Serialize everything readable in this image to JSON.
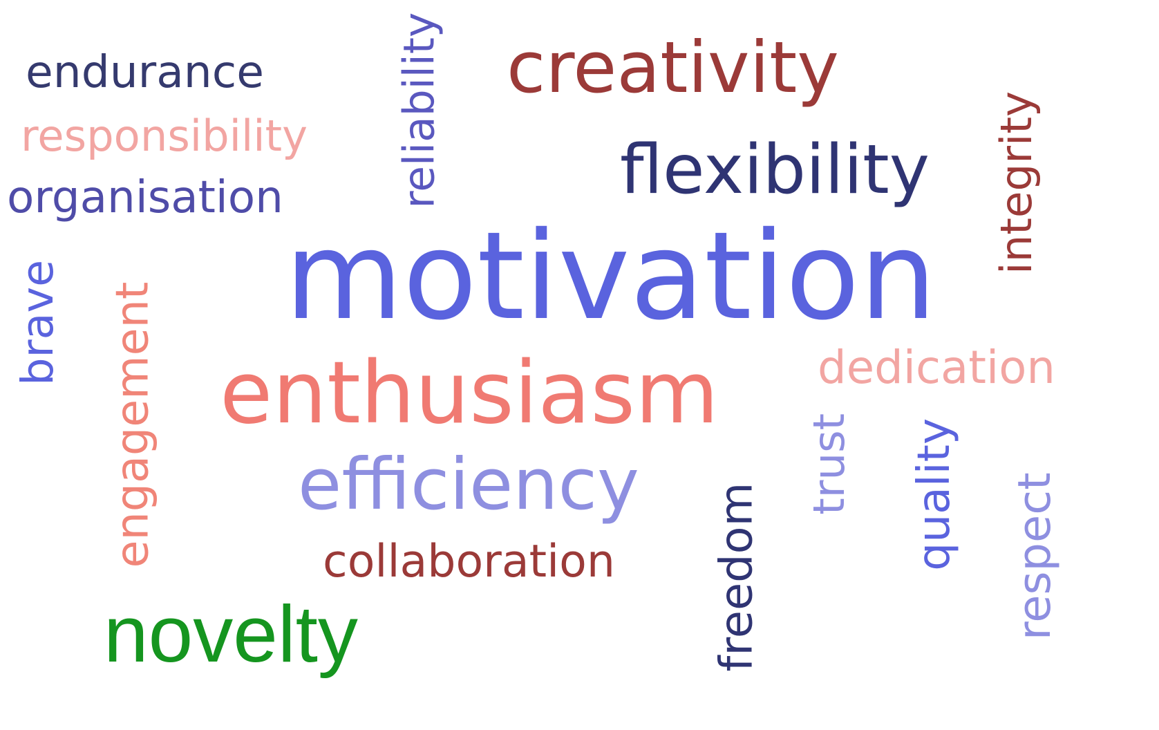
{
  "words": [
    {
      "id": "endurance",
      "text": "endurance",
      "color": "#353a6e",
      "orientation": "horizontal"
    },
    {
      "id": "responsibility",
      "text": "responsibility",
      "color": "#f2a5a2",
      "orientation": "horizontal"
    },
    {
      "id": "organisation",
      "text": "organisation",
      "color": "#4f4ca8",
      "orientation": "horizontal"
    },
    {
      "id": "reliability",
      "text": "reliability",
      "color": "#5a58bf",
      "orientation": "vertical"
    },
    {
      "id": "creativity",
      "text": "creativity",
      "color": "#9b3a38",
      "orientation": "horizontal"
    },
    {
      "id": "flexibility",
      "text": "flexibility",
      "color": "#2f3473",
      "orientation": "horizontal"
    },
    {
      "id": "integrity",
      "text": "integrity",
      "color": "#9b3a38",
      "orientation": "vertical"
    },
    {
      "id": "motivation",
      "text": "motivation",
      "color": "#5a63de",
      "orientation": "horizontal"
    },
    {
      "id": "brave",
      "text": "brave",
      "color": "#5a63de",
      "orientation": "vertical"
    },
    {
      "id": "engagement",
      "text": "engagement",
      "color": "#f08578",
      "orientation": "vertical"
    },
    {
      "id": "enthusiasm",
      "text": "enthusiasm",
      "color": "#f07a72",
      "orientation": "horizontal"
    },
    {
      "id": "dedication",
      "text": "dedication",
      "color": "#f2a5a2",
      "orientation": "horizontal"
    },
    {
      "id": "efficiency",
      "text": "efficiency",
      "color": "#8e8fe0",
      "orientation": "horizontal"
    },
    {
      "id": "trust",
      "text": "trust",
      "color": "#8e8fe0",
      "orientation": "vertical"
    },
    {
      "id": "quality",
      "text": "quality",
      "color": "#5a63de",
      "orientation": "vertical"
    },
    {
      "id": "respect",
      "text": "respect",
      "color": "#8e8fe0",
      "orientation": "vertical"
    },
    {
      "id": "collaboration",
      "text": "collaboration",
      "color": "#9b3a38",
      "orientation": "horizontal"
    },
    {
      "id": "freedom",
      "text": "freedom",
      "color": "#2f3473",
      "orientation": "vertical"
    },
    {
      "id": "novelty",
      "text": "novelty",
      "color": "#15951f",
      "orientation": "horizontal"
    }
  ]
}
